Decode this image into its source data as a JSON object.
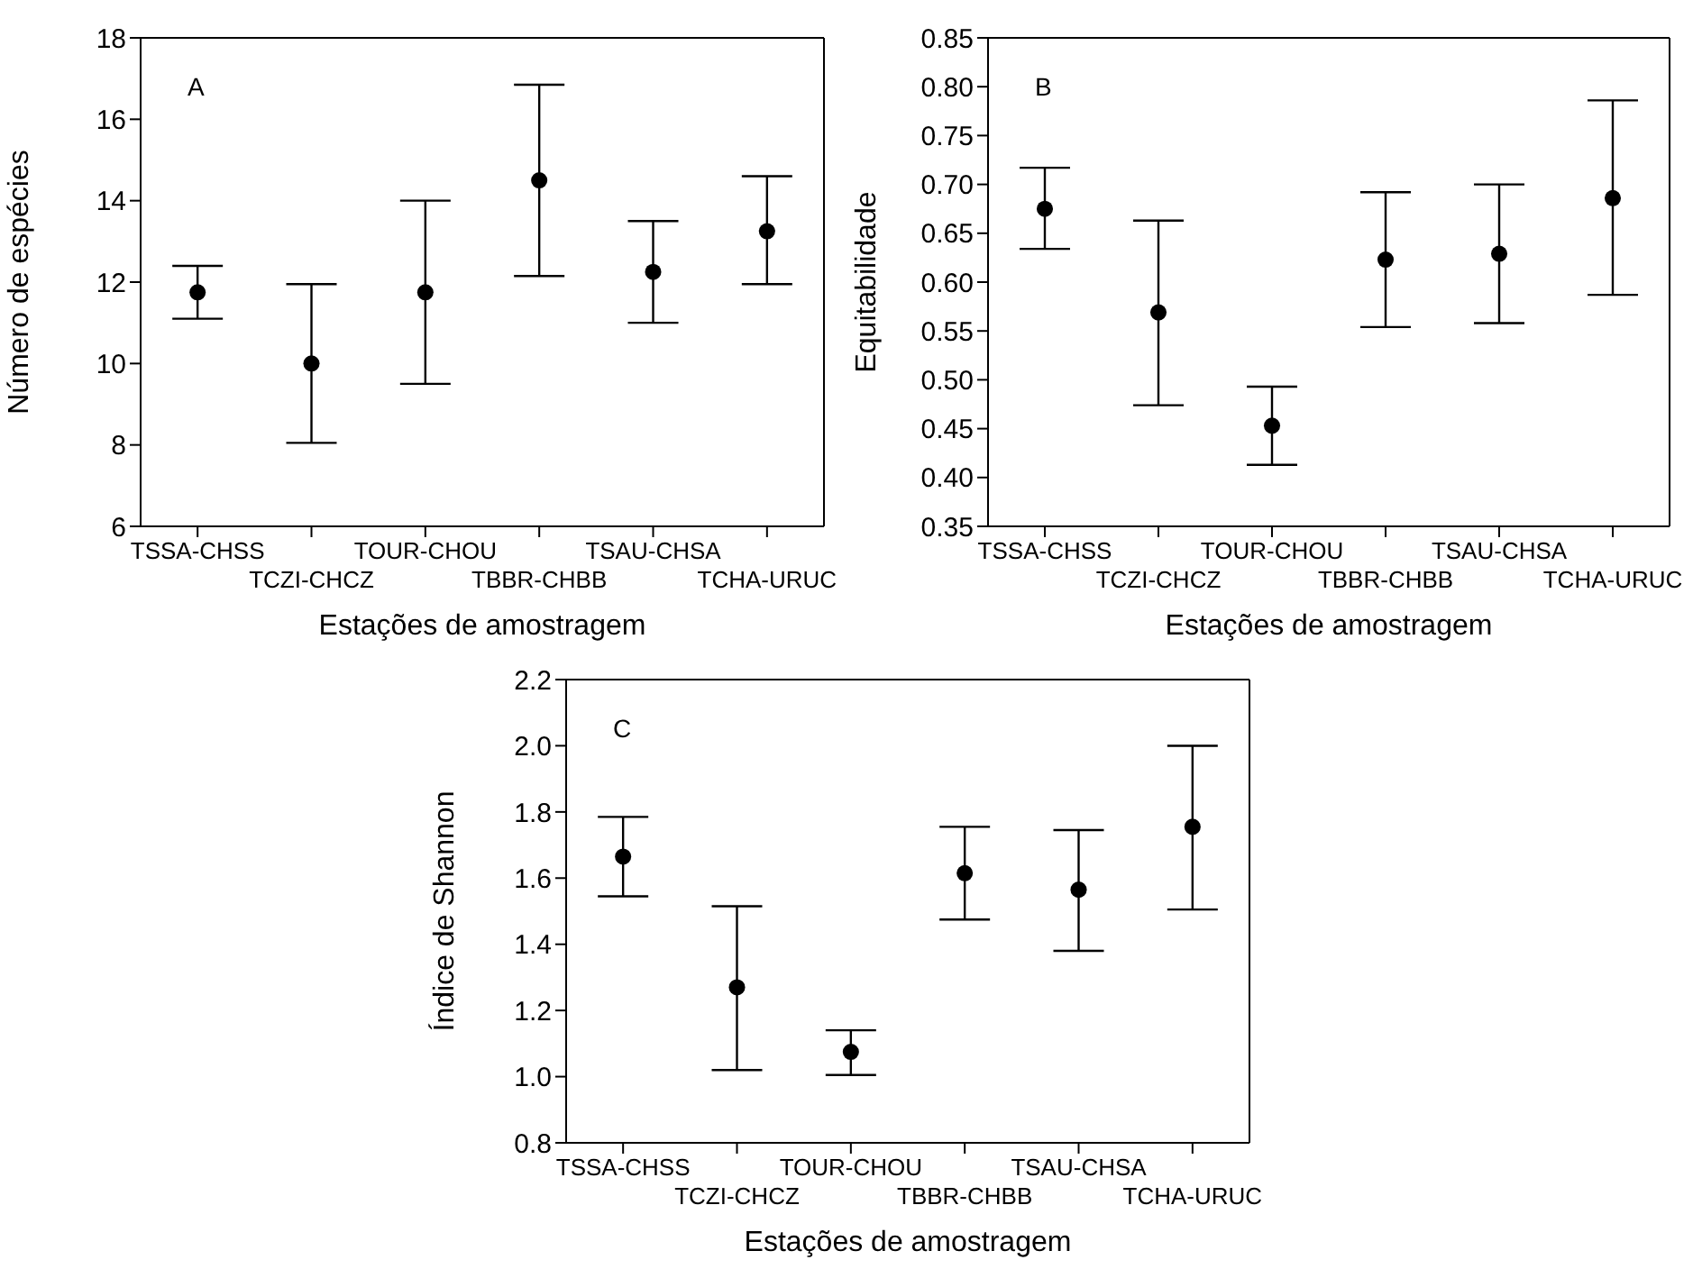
{
  "chart_data": [
    {
      "type": "scatter",
      "categories": [
        "TSSA-CHSS",
        "TCZI-CHCZ",
        "TOUR-CHOU",
        "TBBR-CHBB",
        "TSAU-CHSA",
        "TCHA-URUC"
      ],
      "values": [
        11.75,
        10,
        11.75,
        14.5,
        12.25,
        13.25
      ],
      "errors": [
        [
          11.1,
          12.4
        ],
        [
          8.05,
          11.95
        ],
        [
          9.5,
          14
        ],
        [
          12.15,
          16.85
        ],
        [
          11,
          13.5
        ],
        [
          11.95,
          14.6
        ]
      ],
      "color": "#000000",
      "marker": "circle",
      "xlabel": "Estações de amostragem",
      "ylabel": "Número de espécies",
      "ylim": [
        6,
        18
      ],
      "yticks": [
        6,
        8,
        10,
        12,
        14,
        16,
        18
      ],
      "annotations": [
        "A"
      ]
    },
    {
      "type": "scatter",
      "categories": [
        "TSSA-CHSS",
        "TCZI-CHCZ",
        "TOUR-CHOU",
        "TBBR-CHBB",
        "TSAU-CHSA",
        "TCHA-URUC"
      ],
      "values": [
        0.675,
        0.569,
        0.453,
        0.623,
        0.629,
        0.686
      ],
      "errors": [
        [
          0.634,
          0.717
        ],
        [
          0.474,
          0.663
        ],
        [
          0.413,
          0.493
        ],
        [
          0.554,
          0.692
        ],
        [
          0.558,
          0.7
        ],
        [
          0.587,
          0.786
        ]
      ],
      "color": "#000000",
      "marker": "circle",
      "xlabel": "Estações de amostragem",
      "ylabel": "Equitabilidade",
      "ylim": [
        0.35,
        0.85
      ],
      "yticks": [
        0.35,
        {
          "value": 0.4,
          "label": "0.40"
        },
        0.45,
        {
          "value": 0.5,
          "label": "0.50"
        },
        0.55,
        {
          "value": 0.6,
          "label": "0.60"
        },
        0.65,
        {
          "value": 0.7,
          "label": "0.70"
        },
        0.75,
        {
          "value": 0.8,
          "label": "0.80"
        },
        0.85
      ],
      "annotations": [
        "B"
      ]
    },
    {
      "type": "scatter",
      "categories": [
        "TSSA-CHSS",
        "TCZI-CHCZ",
        "TOUR-CHOU",
        "TBBR-CHBB",
        "TSAU-CHSA",
        "TCHA-URUC"
      ],
      "values": [
        1.665,
        1.27,
        1.075,
        1.615,
        1.565,
        1.755
      ],
      "errors": [
        [
          1.545,
          1.785
        ],
        [
          1.02,
          1.515
        ],
        [
          1.005,
          1.14
        ],
        [
          1.475,
          1.755
        ],
        [
          1.38,
          1.745
        ],
        [
          1.505,
          2.0
        ]
      ],
      "color": "#000000",
      "marker": "circle",
      "xlabel": "Estações de amostragem",
      "ylabel": "Índice de Shannon",
      "ylim": [
        0.8,
        2.2
      ],
      "yticks": [
        0.8,
        {
          "value": 1.0,
          "label": "1.0"
        },
        1.2,
        1.4,
        1.6,
        1.8,
        {
          "value": 2.0,
          "label": "2.0"
        },
        2.2
      ],
      "annotations": [
        "C"
      ]
    }
  ]
}
